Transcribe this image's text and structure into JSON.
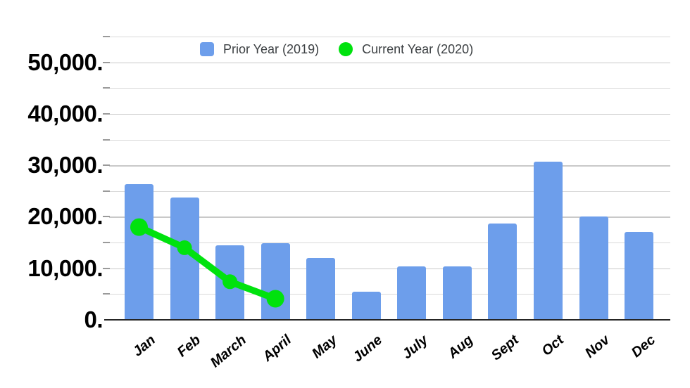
{
  "chart_data": {
    "type": "combo",
    "categories": [
      "Jan",
      "Feb",
      "March",
      "April",
      "May",
      "June",
      "July",
      "Aug",
      "Sept",
      "Oct",
      "Nov",
      "Dec"
    ],
    "series": [
      {
        "name": "Prior Year (2019)",
        "type": "bar",
        "color": "#6d9eeb",
        "values": [
          26300,
          23800,
          14500,
          14900,
          12000,
          5500,
          10400,
          10400,
          18700,
          30700,
          20000,
          17100
        ]
      },
      {
        "name": "Current Year (2020)",
        "type": "line",
        "color": "#00e20e",
        "values": [
          18000,
          14000,
          7400,
          4100,
          null,
          null,
          null,
          null,
          null,
          null,
          null,
          null
        ]
      }
    ],
    "title": "",
    "xlabel": "",
    "ylabel": "",
    "ylim": [
      0,
      55000
    ],
    "y_major_step": 10000,
    "y_minor_step": 5000,
    "y_tick_labels": [
      "0.",
      "10,000.",
      "20,000.",
      "30,000.",
      "40,000.",
      "50,000."
    ],
    "grid": true,
    "legend_position": "top"
  }
}
